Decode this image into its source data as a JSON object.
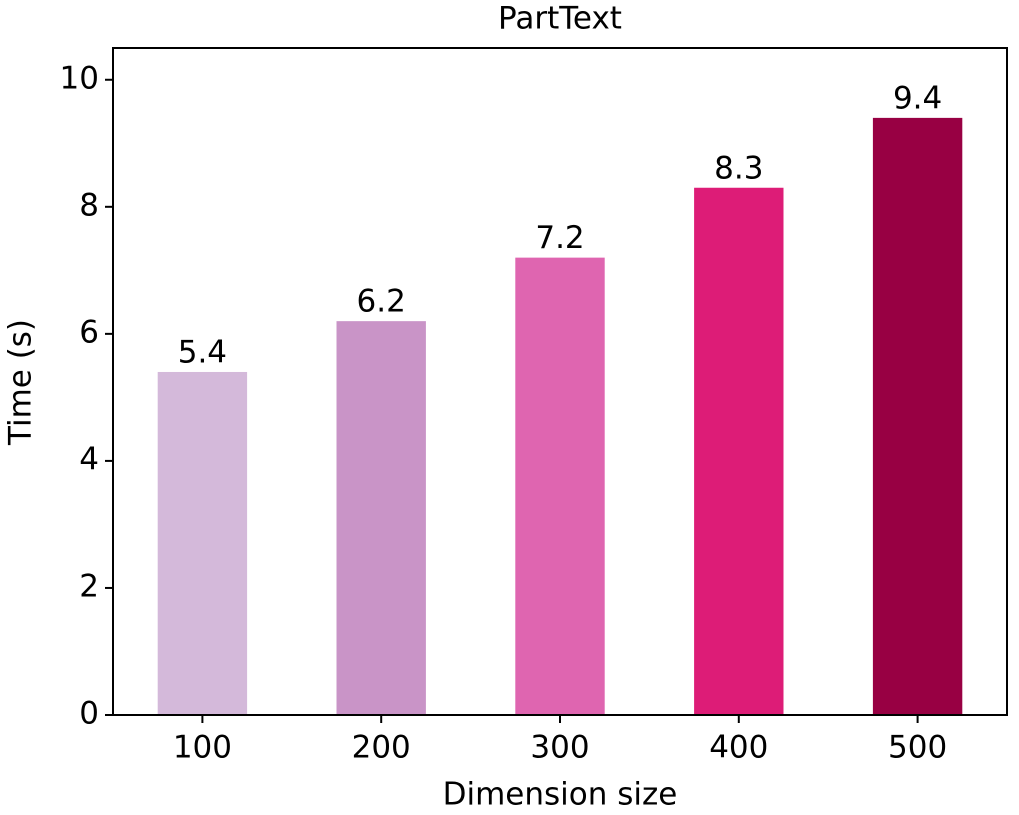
{
  "chart_data": {
    "type": "bar",
    "title": "PartText",
    "x_label": "Dimension size",
    "y_label": "Time (s)",
    "categories": [
      "100",
      "200",
      "300",
      "400",
      "500"
    ],
    "values": [
      5.4,
      6.2,
      7.2,
      8.3,
      9.4
    ],
    "colors": [
      "#d4b9da",
      "#c994c7",
      "#df65b0",
      "#dd1c77",
      "#980043"
    ],
    "ylim": [
      0,
      10.5
    ],
    "yticks": [
      0,
      2,
      4,
      6,
      8,
      10
    ],
    "grid": false
  }
}
